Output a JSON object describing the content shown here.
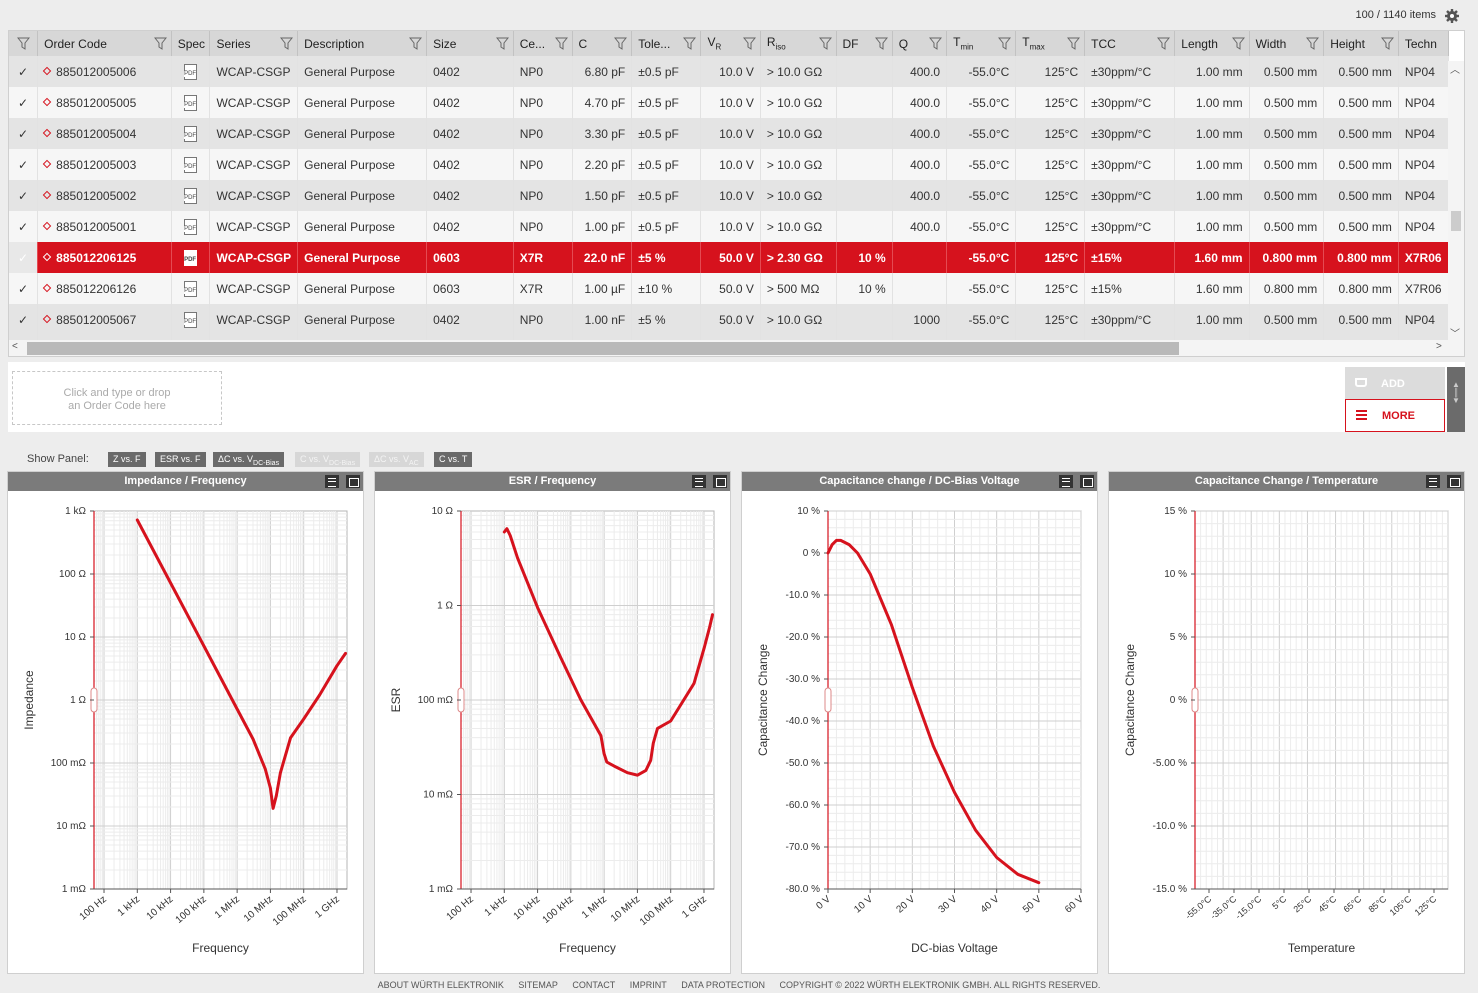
{
  "header": {
    "items_count": "100 / 1140 items"
  },
  "grid": {
    "columns": [
      "",
      "Order Code",
      "Spec",
      "Series",
      "Description",
      "Size",
      "Ce...",
      "C",
      "Tole...",
      "VR",
      "Riso",
      "DF",
      "Q",
      "Tmin",
      "Tmax",
      "TCC",
      "Length",
      "Width",
      "Height",
      "Techn"
    ],
    "rows": [
      {
        "code": "885012005006",
        "series": "WCAP-CSGP",
        "desc": "General Purpose",
        "size": "0402",
        "ce": "NP0",
        "c": "6.80 pF",
        "tol": "±0.5 pF",
        "vr": "10.0 V",
        "riso": "> 10.0 GΩ",
        "df": "",
        "q": "400.0",
        "tmin": "-55.0°C",
        "tmax": "125°C",
        "tcc": "±30ppm/°C",
        "len": "1.00 mm",
        "wid": "0.500 mm",
        "hgt": "0.500 mm",
        "tech": "NP04"
      },
      {
        "code": "885012005005",
        "series": "WCAP-CSGP",
        "desc": "General Purpose",
        "size": "0402",
        "ce": "NP0",
        "c": "4.70 pF",
        "tol": "±0.5 pF",
        "vr": "10.0 V",
        "riso": "> 10.0 GΩ",
        "df": "",
        "q": "400.0",
        "tmin": "-55.0°C",
        "tmax": "125°C",
        "tcc": "±30ppm/°C",
        "len": "1.00 mm",
        "wid": "0.500 mm",
        "hgt": "0.500 mm",
        "tech": "NP04"
      },
      {
        "code": "885012005004",
        "series": "WCAP-CSGP",
        "desc": "General Purpose",
        "size": "0402",
        "ce": "NP0",
        "c": "3.30 pF",
        "tol": "±0.5 pF",
        "vr": "10.0 V",
        "riso": "> 10.0 GΩ",
        "df": "",
        "q": "400.0",
        "tmin": "-55.0°C",
        "tmax": "125°C",
        "tcc": "±30ppm/°C",
        "len": "1.00 mm",
        "wid": "0.500 mm",
        "hgt": "0.500 mm",
        "tech": "NP04"
      },
      {
        "code": "885012005003",
        "series": "WCAP-CSGP",
        "desc": "General Purpose",
        "size": "0402",
        "ce": "NP0",
        "c": "2.20 pF",
        "tol": "±0.5 pF",
        "vr": "10.0 V",
        "riso": "> 10.0 GΩ",
        "df": "",
        "q": "400.0",
        "tmin": "-55.0°C",
        "tmax": "125°C",
        "tcc": "±30ppm/°C",
        "len": "1.00 mm",
        "wid": "0.500 mm",
        "hgt": "0.500 mm",
        "tech": "NP04"
      },
      {
        "code": "885012005002",
        "series": "WCAP-CSGP",
        "desc": "General Purpose",
        "size": "0402",
        "ce": "NP0",
        "c": "1.50 pF",
        "tol": "±0.5 pF",
        "vr": "10.0 V",
        "riso": "> 10.0 GΩ",
        "df": "",
        "q": "400.0",
        "tmin": "-55.0°C",
        "tmax": "125°C",
        "tcc": "±30ppm/°C",
        "len": "1.00 mm",
        "wid": "0.500 mm",
        "hgt": "0.500 mm",
        "tech": "NP04"
      },
      {
        "code": "885012005001",
        "series": "WCAP-CSGP",
        "desc": "General Purpose",
        "size": "0402",
        "ce": "NP0",
        "c": "1.00 pF",
        "tol": "±0.5 pF",
        "vr": "10.0 V",
        "riso": "> 10.0 GΩ",
        "df": "",
        "q": "400.0",
        "tmin": "-55.0°C",
        "tmax": "125°C",
        "tcc": "±30ppm/°C",
        "len": "1.00 mm",
        "wid": "0.500 mm",
        "hgt": "0.500 mm",
        "tech": "NP04"
      },
      {
        "code": "885012206125",
        "series": "WCAP-CSGP",
        "desc": "General Purpose",
        "size": "0603",
        "ce": "X7R",
        "c": "22.0 nF",
        "tol": "±5 %",
        "vr": "50.0 V",
        "riso": "> 2.30 GΩ",
        "df": "10 %",
        "q": "",
        "tmin": "-55.0°C",
        "tmax": "125°C",
        "tcc": "±15%",
        "len": "1.60 mm",
        "wid": "0.800 mm",
        "hgt": "0.800 mm",
        "tech": "X7R06",
        "selected": true
      },
      {
        "code": "885012206126",
        "series": "WCAP-CSGP",
        "desc": "General Purpose",
        "size": "0603",
        "ce": "X7R",
        "c": "1.00 µF",
        "tol": "±10 %",
        "vr": "50.0 V",
        "riso": "> 500 MΩ",
        "df": "10 %",
        "q": "",
        "tmin": "-55.0°C",
        "tmax": "125°C",
        "tcc": "±15%",
        "len": "1.60 mm",
        "wid": "0.800 mm",
        "hgt": "0.800 mm",
        "tech": "X7R06"
      },
      {
        "code": "885012005067",
        "series": "WCAP-CSGP",
        "desc": "General Purpose",
        "size": "0402",
        "ce": "NP0",
        "c": "1.00 nF",
        "tol": "±5 %",
        "vr": "50.0 V",
        "riso": "> 10.0 GΩ",
        "df": "",
        "q": "1000",
        "tmin": "-55.0°C",
        "tmax": "125°C",
        "tcc": "±30ppm/°C",
        "len": "1.00 mm",
        "wid": "0.500 mm",
        "hgt": "0.500 mm",
        "tech": "NP04"
      }
    ]
  },
  "dropzone": {
    "line1": "Click and type or drop",
    "line2": "an Order Code here"
  },
  "actions": {
    "add": "ADD",
    "more": "MORE"
  },
  "show_panel": {
    "label": "Show Panel:",
    "buttons": [
      {
        "label": "Z vs. F",
        "active": true
      },
      {
        "label": "ESR vs. F",
        "active": true
      },
      {
        "label": "ΔC vs. V",
        "sub": "DC-Bias",
        "active": true
      },
      {
        "label": "C vs. V",
        "sub": "DC-Bias",
        "active": false
      },
      {
        "label": "ΔC vs. V",
        "sub": "AC",
        "active": false
      },
      {
        "label": "C vs. T",
        "active": true
      }
    ]
  },
  "chart_data": [
    {
      "type": "line",
      "title": "Impedance / Frequency",
      "xlabel": "Frequency",
      "ylabel": "Impedance",
      "xscale": "log",
      "yscale": "log",
      "xlim": [
        50,
        2000000000
      ],
      "ylim": [
        0.001,
        1000
      ],
      "xticks": [
        100,
        1000,
        10000,
        100000,
        1000000,
        10000000,
        100000000,
        1000000000
      ],
      "xtick_labels": [
        "100 Hz",
        "1 kHz",
        "10 kHz",
        "100 kHz",
        "1 MHz",
        "10 MHz",
        "100 MHz",
        "1 GHz"
      ],
      "yticks": [
        0.001,
        0.01,
        0.1,
        1,
        10,
        100,
        1000
      ],
      "ytick_labels": [
        "1 mΩ",
        "10 mΩ",
        "100 mΩ",
        "1 Ω",
        "10 Ω",
        "100 Ω",
        "1 kΩ"
      ],
      "grid": true,
      "color": "#d6121d",
      "series": [
        {
          "x": [
            1000,
            10000,
            100000,
            1000000,
            3000000,
            7000000,
            10000000,
            12000000,
            15000000,
            20000000,
            40000000,
            100000000,
            300000000,
            1000000000,
            1800000000
          ],
          "y": [
            720,
            72,
            7.2,
            0.72,
            0.24,
            0.08,
            0.04,
            0.019,
            0.03,
            0.07,
            0.25,
            0.5,
            1.2,
            3.5,
            5.5
          ]
        }
      ]
    },
    {
      "type": "line",
      "title": "ESR / Frequency",
      "xlabel": "Frequency",
      "ylabel": "ESR",
      "xscale": "log",
      "yscale": "log",
      "xlim": [
        50,
        2000000000
      ],
      "ylim": [
        0.001,
        10
      ],
      "xticks": [
        100,
        1000,
        10000,
        100000,
        1000000,
        10000000,
        100000000,
        1000000000
      ],
      "xtick_labels": [
        "100 Hz",
        "1 kHz",
        "10 kHz",
        "100 kHz",
        "1 MHz",
        "10 MHz",
        "100 MHz",
        "1 GHz"
      ],
      "yticks": [
        0.001,
        0.01,
        0.1,
        1,
        10
      ],
      "ytick_labels": [
        "1 mΩ",
        "10 mΩ",
        "100 mΩ",
        "1 Ω",
        "10 Ω"
      ],
      "grid": true,
      "color": "#d6121d",
      "series": [
        {
          "x": [
            1000,
            1200,
            1500,
            2500,
            10000,
            50000,
            200000,
            800000,
            1000000,
            1200000,
            2000000,
            5000000,
            10000000,
            18000000,
            25000000,
            30000000,
            40000000,
            100000000,
            500000000,
            1000000000,
            1500000000,
            1800000000
          ],
          "y": [
            6,
            6.5,
            5.5,
            3.2,
            0.95,
            0.28,
            0.1,
            0.042,
            0.027,
            0.022,
            0.02,
            0.017,
            0.016,
            0.018,
            0.023,
            0.035,
            0.05,
            0.06,
            0.15,
            0.35,
            0.6,
            0.8
          ]
        }
      ]
    },
    {
      "type": "line",
      "title": "Capacitance change / DC-Bias Voltage",
      "xlabel": "DC-bias Voltage",
      "ylabel": "Capacitance Change",
      "xlim": [
        0,
        60
      ],
      "ylim": [
        -80,
        10
      ],
      "xticks": [
        0,
        10,
        20,
        30,
        40,
        50,
        60
      ],
      "xtick_labels": [
        "0 V",
        "10 V",
        "20 V",
        "30 V",
        "40 V",
        "50 V",
        "60 V"
      ],
      "yticks": [
        10,
        0,
        -10,
        -20,
        -30,
        -40,
        -50,
        -60,
        -70,
        -80
      ],
      "ytick_labels": [
        "10 %",
        "0 %",
        "-10.0 %",
        "-20.0 %",
        "-30.0 %",
        "-40.0 %",
        "-50.0 %",
        "-60.0 %",
        "-70.0 %",
        "-80.0 %"
      ],
      "grid": true,
      "color": "#d6121d",
      "series": [
        {
          "x": [
            0,
            1,
            2,
            3,
            4,
            5,
            7,
            10,
            15,
            20,
            25,
            30,
            35,
            40,
            45,
            50
          ],
          "y": [
            0,
            2,
            3,
            3,
            2.5,
            2,
            0,
            -5,
            -17,
            -32,
            -46,
            -57,
            -66,
            -72.5,
            -76.5,
            -78.5
          ]
        }
      ]
    },
    {
      "type": "line",
      "title": "Capacitance Change / Temperature",
      "xlabel": "Temperature",
      "ylabel": "Capacitance Change",
      "ylim": [
        -15,
        15
      ],
      "xtick_labels": [
        "-55.0°C",
        "-35.0°C",
        "-15.0°C",
        "5°C",
        "25°C",
        "45°C",
        "65°C",
        "85°C",
        "105°C",
        "125°C"
      ],
      "yticks": [
        15,
        10,
        5,
        0,
        -5,
        -10,
        -15
      ],
      "ytick_labels": [
        "15 %",
        "10 %",
        "5 %",
        "0 %",
        "-5.00 %",
        "-10.0 %",
        "-15.0 %"
      ],
      "grid": true,
      "series": []
    }
  ],
  "footer": {
    "links": [
      "ABOUT WÜRTH ELEKTRONIK",
      "SITEMAP",
      "CONTACT",
      "IMPRINT",
      "DATA PROTECTION"
    ],
    "copyright": "COPYRIGHT © 2022 WÜRTH ELEKTRONIK GMBH. ALL RIGHTS RESERVED."
  }
}
